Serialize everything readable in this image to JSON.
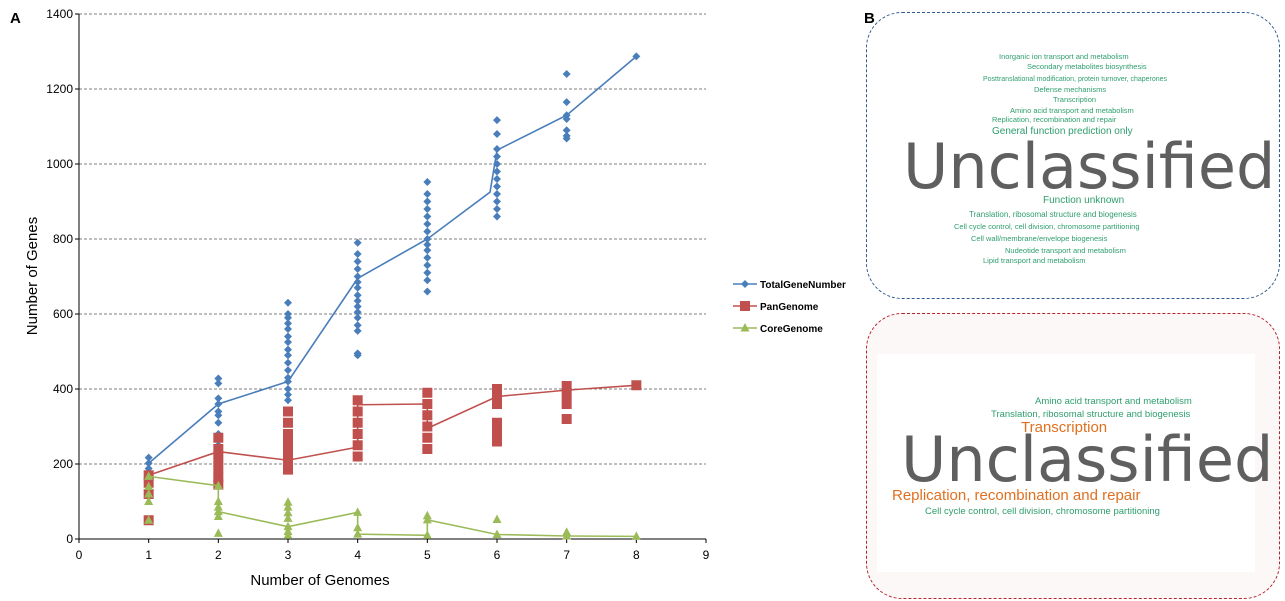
{
  "panels": {
    "a_label": "A",
    "b_label": "B"
  },
  "chart_data": {
    "type": "line",
    "title": "",
    "xlabel": "Number of Genomes",
    "ylabel": "Number of Genes",
    "xlim": [
      0,
      9
    ],
    "ylim": [
      0,
      1400
    ],
    "xticks": [
      0,
      1,
      2,
      3,
      4,
      5,
      6,
      7,
      8,
      9
    ],
    "yticks": [
      0,
      200,
      400,
      600,
      800,
      1000,
      1200,
      1400
    ],
    "grid": "horizontal-dashed",
    "legend_position": "right",
    "series": [
      {
        "name": "TotalGeneNumber",
        "color": "#4a7ebb",
        "marker": "diamond",
        "line": [
          [
            1,
            202
          ],
          [
            2,
            360
          ],
          [
            3,
            420
          ],
          [
            4,
            695
          ],
          [
            5,
            800
          ],
          [
            5.9,
            925
          ],
          [
            6,
            1037
          ],
          [
            7,
            1130
          ],
          [
            8,
            1287
          ]
        ],
        "points": [
          [
            1,
            217
          ],
          [
            1,
            202
          ],
          [
            1,
            188
          ],
          [
            2,
            428
          ],
          [
            2,
            415
          ],
          [
            2,
            375
          ],
          [
            2,
            360
          ],
          [
            2,
            340
          ],
          [
            2,
            330
          ],
          [
            2,
            310
          ],
          [
            2,
            280
          ],
          [
            2,
            250
          ],
          [
            3,
            630
          ],
          [
            3,
            600
          ],
          [
            3,
            590
          ],
          [
            3,
            575
          ],
          [
            3,
            560
          ],
          [
            3,
            540
          ],
          [
            3,
            525
          ],
          [
            3,
            505
          ],
          [
            3,
            490
          ],
          [
            3,
            470
          ],
          [
            3,
            450
          ],
          [
            3,
            430
          ],
          [
            3,
            420
          ],
          [
            3,
            400
          ],
          [
            3,
            385
          ],
          [
            3,
            370
          ],
          [
            4,
            790
          ],
          [
            4,
            760
          ],
          [
            4,
            740
          ],
          [
            4,
            720
          ],
          [
            4,
            700
          ],
          [
            4,
            685
          ],
          [
            4,
            670
          ],
          [
            4,
            650
          ],
          [
            4,
            635
          ],
          [
            4,
            620
          ],
          [
            4,
            605
          ],
          [
            4,
            590
          ],
          [
            4,
            570
          ],
          [
            4,
            555
          ],
          [
            4,
            495
          ],
          [
            4,
            490
          ],
          [
            5,
            952
          ],
          [
            5,
            920
          ],
          [
            5,
            900
          ],
          [
            5,
            880
          ],
          [
            5,
            860
          ],
          [
            5,
            840
          ],
          [
            5,
            820
          ],
          [
            5,
            800
          ],
          [
            5,
            785
          ],
          [
            5,
            770
          ],
          [
            5,
            750
          ],
          [
            5,
            730
          ],
          [
            5,
            710
          ],
          [
            5,
            690
          ],
          [
            5,
            660
          ],
          [
            6,
            1117
          ],
          [
            6,
            1080
          ],
          [
            6,
            1040
          ],
          [
            6,
            1020
          ],
          [
            6,
            1000
          ],
          [
            6,
            980
          ],
          [
            6,
            960
          ],
          [
            6,
            940
          ],
          [
            6,
            920
          ],
          [
            6,
            900
          ],
          [
            6,
            880
          ],
          [
            6,
            860
          ],
          [
            7,
            1240
          ],
          [
            7,
            1165
          ],
          [
            7,
            1130
          ],
          [
            7,
            1120
          ],
          [
            7,
            1090
          ],
          [
            7,
            1075
          ],
          [
            7,
            1068
          ],
          [
            8,
            1287
          ]
        ]
      },
      {
        "name": "PanGenome",
        "color": "#c0504d",
        "marker": "square",
        "line": [
          [
            1,
            170
          ],
          [
            2,
            233
          ],
          [
            3,
            210
          ],
          [
            4,
            245
          ],
          [
            4,
            358
          ],
          [
            5,
            360
          ],
          [
            5,
            295
          ],
          [
            6,
            380
          ],
          [
            7,
            397
          ],
          [
            8,
            410
          ]
        ],
        "points": [
          [
            1,
            170
          ],
          [
            1,
            150
          ],
          [
            1,
            120
          ],
          [
            1,
            50
          ],
          [
            2,
            270
          ],
          [
            2,
            240
          ],
          [
            2,
            215
          ],
          [
            2,
            190
          ],
          [
            2,
            165
          ],
          [
            2,
            145
          ],
          [
            3,
            340
          ],
          [
            3,
            310
          ],
          [
            3,
            280
          ],
          [
            3,
            255
          ],
          [
            3,
            230
          ],
          [
            3,
            210
          ],
          [
            3,
            185
          ],
          [
            4,
            370
          ],
          [
            4,
            340
          ],
          [
            4,
            310
          ],
          [
            4,
            280
          ],
          [
            4,
            250
          ],
          [
            4,
            220
          ],
          [
            5,
            390
          ],
          [
            5,
            360
          ],
          [
            5,
            330
          ],
          [
            5,
            300
          ],
          [
            5,
            270
          ],
          [
            5,
            240
          ],
          [
            6,
            400
          ],
          [
            6,
            380
          ],
          [
            6,
            360
          ],
          [
            6,
            310
          ],
          [
            6,
            285
          ],
          [
            6,
            260
          ],
          [
            7,
            408
          ],
          [
            7,
            385
          ],
          [
            7,
            360
          ],
          [
            7,
            320
          ],
          [
            8,
            410
          ]
        ]
      },
      {
        "name": "CoreGenome",
        "color": "#9bbb59",
        "marker": "triangle",
        "line": [
          [
            1,
            167
          ],
          [
            2,
            142
          ],
          [
            2,
            73
          ],
          [
            3,
            33
          ],
          [
            4,
            71
          ],
          [
            4,
            13
          ],
          [
            5,
            10
          ],
          [
            5,
            51
          ],
          [
            6,
            12
          ],
          [
            7,
            8
          ],
          [
            8,
            7
          ]
        ],
        "points": [
          [
            1,
            167
          ],
          [
            1,
            140
          ],
          [
            1,
            120
          ],
          [
            1,
            100
          ],
          [
            1,
            50
          ],
          [
            2,
            142
          ],
          [
            2,
            100
          ],
          [
            2,
            85
          ],
          [
            2,
            73
          ],
          [
            2,
            60
          ],
          [
            2,
            15
          ],
          [
            3,
            98
          ],
          [
            3,
            85
          ],
          [
            3,
            70
          ],
          [
            3,
            55
          ],
          [
            3,
            33
          ],
          [
            3,
            20
          ],
          [
            3,
            10
          ],
          [
            4,
            71
          ],
          [
            4,
            30
          ],
          [
            4,
            13
          ],
          [
            5,
            62
          ],
          [
            5,
            51
          ],
          [
            5,
            10
          ],
          [
            6,
            52
          ],
          [
            6,
            12
          ],
          [
            7,
            18
          ],
          [
            7,
            8
          ],
          [
            8,
            7
          ]
        ]
      }
    ]
  },
  "wordclouds": {
    "panel1": {
      "big_word": "Unclassified",
      "words": [
        {
          "text": "Inorganic ion transport and metabolism",
          "color": "#2e9e6e"
        },
        {
          "text": "Secondary metabolites biosynthesis",
          "color": "#2e9e6e"
        },
        {
          "text": "Posttranslational modification, protein turnover, chaperones",
          "color": "#2e9e6e"
        },
        {
          "text": "Defense mechanisms",
          "color": "#2e9e6e"
        },
        {
          "text": "Transcription",
          "color": "#2e9e6e"
        },
        {
          "text": "Amino acid transport and metabolism",
          "color": "#2e9e6e"
        },
        {
          "text": "Replication, recombination and repair",
          "color": "#2e9e6e"
        },
        {
          "text": "General function prediction only",
          "color": "#2e9e6e"
        },
        {
          "text": "Function unknown",
          "color": "#2e9e6e"
        },
        {
          "text": "Translation, ribosomal structure and biogenesis",
          "color": "#2e9e6e"
        },
        {
          "text": "Cell cycle control, cell division,  chromosome partitioning",
          "color": "#2e9e6e"
        },
        {
          "text": "Cell wall/membrane/envelope biogenesis",
          "color": "#2e9e6e"
        },
        {
          "text": "Nudeotide transport and metabolism",
          "color": "#2e9e6e"
        },
        {
          "text": "Lipid transport and metabolism",
          "color": "#2e9e6e"
        }
      ]
    },
    "panel2": {
      "big_word": "Unclassified",
      "words": [
        {
          "text": "Amino acid transport and metabolism",
          "color": "#2e9e6e"
        },
        {
          "text": "Translation, ribosomal structure and biogenesis",
          "color": "#2e9e6e"
        },
        {
          "text": "Transcription",
          "color": "#e07020"
        },
        {
          "text": "Replication, recombination and repair",
          "color": "#e07020"
        },
        {
          "text": "Cell cycle control, cell division, chromosome partitioning",
          "color": "#2e9e6e"
        }
      ]
    }
  }
}
